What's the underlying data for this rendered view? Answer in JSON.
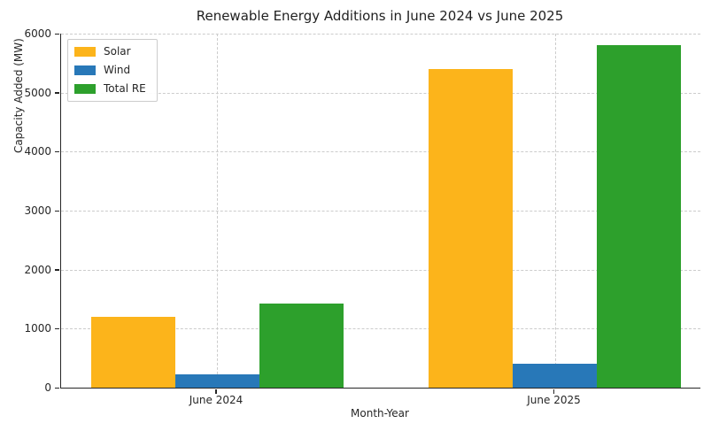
{
  "chart_data": {
    "type": "bar",
    "title": "Renewable Energy Additions in June 2024 vs June 2025",
    "xlabel": "Month-Year",
    "ylabel": "Capacity Added (MW)",
    "categories": [
      "June 2024",
      "June 2025"
    ],
    "series": [
      {
        "name": "Solar",
        "color": "#FCB41B",
        "values": [
          1200,
          5400
        ]
      },
      {
        "name": "Wind",
        "color": "#2878B8",
        "values": [
          230,
          400
        ]
      },
      {
        "name": "Total RE",
        "color": "#2DA02C",
        "values": [
          1430,
          5800
        ]
      }
    ],
    "ylim": [
      0,
      6000
    ],
    "yticks": [
      0,
      1000,
      2000,
      3000,
      4000,
      5000,
      6000
    ],
    "grid": "dashed",
    "legend_position": "upper left"
  }
}
